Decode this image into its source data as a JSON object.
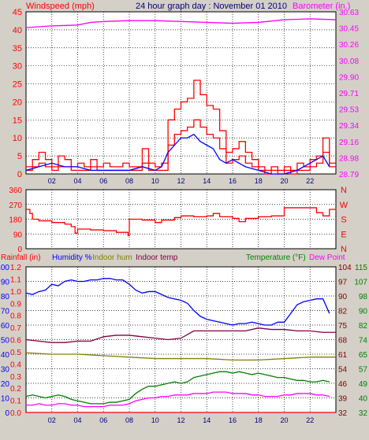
{
  "header": {
    "windspeed_label": "Windspeed (mph)",
    "title": "24 hour graph day : November 01 2010",
    "barometer_label": "Barometer (in.)"
  },
  "colors": {
    "wind": "#ff0000",
    "gust": "#ff0000",
    "avg_wind": "#0000ff",
    "barometer": "#ff00ff",
    "direction": "#ff0000",
    "humidity": "#0000ff",
    "indoor_hum": "#808000",
    "indoor_temp": "#800040",
    "temperature": "#008000",
    "dew_point": "#ff00ff",
    "rainfall": "#ff0000",
    "grid": "#000000",
    "panel_bg": "#ffffff",
    "left_axis": "#ff0000",
    "right_axis": "#ff00ff",
    "text_axis": "#000080"
  },
  "x_ticks": [
    "02",
    "04",
    "06",
    "08",
    "10",
    "12",
    "14",
    "16",
    "18",
    "20",
    "22"
  ],
  "chart_data": [
    {
      "type": "line",
      "name": "wind-barometer",
      "title": "24 hour graph day : November 01 2010",
      "ylabel": "Windspeed (mph)",
      "y2label": "Barometer (in.)",
      "xlim": [
        0,
        24
      ],
      "ylim": [
        0,
        45
      ],
      "y2lim": [
        28.79,
        30.63
      ],
      "y_ticks": [
        "0",
        "5",
        "10",
        "15",
        "20",
        "25",
        "30",
        "35",
        "40",
        "45"
      ],
      "y2_ticks": [
        "28.79",
        "28.98",
        "29.16",
        "29.34",
        "29.53",
        "29.71",
        "29.90",
        "30.08",
        "30.26",
        "30.45",
        "30.63"
      ],
      "grid": true,
      "series": [
        {
          "key": "gust",
          "x": [
            0,
            0.5,
            1,
            1.5,
            2,
            2.5,
            3,
            3.5,
            4,
            4.5,
            5,
            5.5,
            6,
            6.5,
            7,
            7.5,
            8,
            8.5,
            9,
            9.5,
            10,
            10.5,
            11,
            11.5,
            12,
            12.5,
            13,
            13.5,
            14,
            14.5,
            15,
            15.5,
            16,
            16.5,
            17,
            17.5,
            18,
            18.5,
            19,
            19.5,
            20,
            20.5,
            21,
            21.5,
            22,
            22.5,
            23,
            23.5
          ],
          "y": [
            2,
            4,
            6,
            4,
            2,
            5,
            4,
            2,
            3,
            2,
            4,
            2,
            3,
            2,
            2,
            3,
            2,
            2,
            7,
            3,
            2,
            3,
            15,
            18,
            20,
            21,
            26,
            22,
            19,
            18,
            12,
            6,
            7,
            9,
            6,
            4,
            2,
            1,
            2,
            1,
            2,
            1,
            3,
            2,
            4,
            5,
            10,
            3
          ]
        },
        {
          "key": "wind",
          "x": [
            0,
            0.5,
            1,
            1.5,
            2,
            2.5,
            3,
            3.5,
            4,
            4.5,
            5,
            5.5,
            6,
            6.5,
            7,
            7.5,
            8,
            8.5,
            9,
            9.5,
            10,
            10.5,
            11,
            11.5,
            12,
            12.5,
            13,
            13.5,
            14,
            14.5,
            15,
            15.5,
            16,
            16.5,
            17,
            17.5,
            18,
            18.5,
            19,
            19.5,
            20,
            20.5,
            21,
            21.5,
            22,
            22.5,
            23,
            23.5
          ],
          "y": [
            1,
            2,
            3,
            2,
            1,
            2,
            2,
            1,
            1,
            1,
            2,
            1,
            1,
            1,
            1,
            1,
            1,
            1,
            3,
            1,
            1,
            1,
            8,
            11,
            12,
            13,
            15,
            13,
            11,
            10,
            7,
            3,
            4,
            5,
            3,
            2,
            1,
            0,
            1,
            0,
            1,
            0,
            1,
            1,
            2,
            3,
            6,
            2
          ]
        },
        {
          "key": "avg_wind",
          "x": [
            0,
            1,
            2,
            3,
            4,
            5,
            6,
            7,
            8,
            9,
            10,
            10.5,
            11,
            11.5,
            12,
            12.5,
            13,
            13.5,
            14,
            14.5,
            15,
            15.5,
            16,
            17,
            18,
            19,
            20,
            21,
            22,
            22.5,
            23,
            23.5
          ],
          "y": [
            1,
            2,
            3,
            2,
            2,
            1,
            1,
            1,
            1,
            2,
            1,
            2,
            6,
            8,
            10,
            10,
            11,
            9,
            8,
            7,
            4,
            3,
            4,
            2,
            1,
            0,
            0,
            1,
            3,
            4,
            5,
            2
          ]
        }
      ],
      "y2_series": [
        {
          "key": "barometer",
          "x": [
            0,
            2,
            4,
            5,
            6,
            8,
            10,
            12,
            14,
            16,
            18,
            20,
            22,
            24
          ],
          "y": [
            30.45,
            30.47,
            30.48,
            30.51,
            30.52,
            30.53,
            30.53,
            30.52,
            30.51,
            30.5,
            30.51,
            30.54,
            30.55,
            30.54
          ]
        }
      ]
    },
    {
      "type": "line",
      "name": "wind-direction",
      "xlim": [
        0,
        24
      ],
      "ylim": [
        0,
        360
      ],
      "y_ticks": [
        "0",
        "90",
        "180",
        "270",
        "360"
      ],
      "y2_ticks": [
        "N",
        "W",
        "S",
        "E",
        "N"
      ],
      "grid": true,
      "series": [
        {
          "key": "direction",
          "x": [
            0,
            0.3,
            0.5,
            1,
            2,
            3,
            3.5,
            3.8,
            4,
            5,
            6,
            7,
            7.5,
            7.9,
            8,
            9,
            10,
            10.5,
            11,
            11.5,
            12,
            13,
            14,
            14.5,
            15,
            16,
            16.5,
            17,
            18,
            19,
            20,
            21,
            22,
            22.5,
            23,
            23.5,
            24
          ],
          "y": [
            240,
            215,
            180,
            170,
            160,
            150,
            135,
            95,
            120,
            115,
            110,
            100,
            100,
            80,
            180,
            175,
            160,
            175,
            175,
            190,
            200,
            195,
            200,
            215,
            195,
            185,
            165,
            185,
            195,
            200,
            250,
            250,
            250,
            220,
            200,
            240,
            250
          ]
        }
      ]
    },
    {
      "type": "line",
      "name": "humidity-temperature",
      "xlim": [
        0,
        24
      ],
      "left_labels": [
        "Rainfall (in)",
        "Humidity %",
        "Indoor hum",
        "Indoor temp"
      ],
      "right_labels": [
        "Temperature (°F)",
        "Dew Point"
      ],
      "rain_ticks": [
        "0.0",
        "0.1",
        "0.2",
        "0.3",
        "0.4",
        "0.5",
        "0.6",
        "0.7",
        "0.8",
        "0.9",
        "1.0",
        "1.1",
        "1.2"
      ],
      "hum_ticks": [
        "0",
        "10",
        "20",
        "30",
        "40",
        "50",
        "60",
        "70",
        "80",
        "90",
        "100"
      ],
      "temp_ticks_inner": [
        "32",
        "39",
        "46",
        "54",
        "61",
        "68",
        "75",
        "82",
        "90",
        "97",
        "104"
      ],
      "temp_ticks_outer": [
        "32",
        "40",
        "49",
        "57",
        "65",
        "74",
        "82",
        "90",
        "98",
        "107",
        "115"
      ],
      "ylim": [
        0,
        100
      ],
      "grid": true,
      "series": [
        {
          "key": "humidity",
          "x": [
            0,
            0.5,
            1,
            1.5,
            2,
            2.5,
            3,
            3.5,
            4,
            4.5,
            5,
            5.5,
            6,
            6.5,
            7,
            7.5,
            8,
            8.5,
            9,
            9.5,
            10,
            10.5,
            11,
            11.5,
            12,
            12.5,
            13,
            13.5,
            14,
            14.5,
            15,
            15.5,
            16,
            16.5,
            17,
            17.5,
            18,
            18.5,
            19,
            19.5,
            20,
            20.5,
            21,
            21.5,
            22,
            22.5,
            23,
            23.5
          ],
          "y": [
            82,
            81,
            83,
            84,
            88,
            87,
            90,
            91,
            90,
            90,
            91,
            91,
            92,
            92,
            91,
            91,
            88,
            84,
            82,
            83,
            83,
            81,
            79,
            78,
            77,
            75,
            70,
            66,
            64,
            63,
            62,
            61,
            60,
            61,
            61,
            62,
            61,
            60,
            60,
            62,
            62,
            68,
            74,
            76,
            77,
            78,
            78,
            68
          ]
        },
        {
          "key": "indoor_temp",
          "x": [
            0,
            1,
            2,
            3,
            4,
            5,
            6,
            7,
            8,
            9,
            10,
            11,
            12,
            13,
            14,
            15,
            16,
            17,
            18,
            19,
            20,
            21,
            22,
            23,
            24
          ],
          "y": [
            50,
            49,
            48,
            48,
            49,
            49,
            52,
            53,
            53,
            52,
            51,
            50,
            51,
            56,
            56,
            56,
            56,
            56,
            58,
            57,
            57,
            56,
            56,
            55,
            55
          ]
        },
        {
          "key": "indoor_hum",
          "x": [
            0,
            2,
            4,
            6,
            8,
            10,
            12,
            14,
            16,
            18,
            20,
            22,
            24
          ],
          "y": [
            41,
            40,
            40,
            39,
            38,
            37,
            37,
            37,
            36,
            36,
            37,
            38,
            38
          ]
        },
        {
          "key": "temperature",
          "x": [
            0,
            0.5,
            1,
            1.5,
            2,
            2.5,
            3,
            3.5,
            4,
            4.5,
            5,
            5.5,
            6,
            6.5,
            7,
            7.5,
            8,
            8.5,
            9,
            9.5,
            10,
            10.5,
            11,
            11.5,
            12,
            12.5,
            13,
            13.5,
            14,
            14.5,
            15,
            15.5,
            16,
            16.5,
            17,
            17.5,
            18,
            18.5,
            19,
            19.5,
            20,
            20.5,
            21,
            21.5,
            22,
            22.5,
            23,
            23.5
          ],
          "y": [
            11,
            12,
            11,
            10,
            11,
            12,
            11,
            9,
            8,
            7,
            6,
            6,
            6,
            7,
            7,
            8,
            9,
            13,
            16,
            18,
            18,
            19,
            20,
            21,
            20,
            21,
            24,
            25,
            26,
            27,
            28,
            28,
            27,
            28,
            27,
            26,
            27,
            26,
            25,
            24,
            24,
            23,
            22,
            22,
            21,
            21,
            22,
            21
          ]
        },
        {
          "key": "dew_point",
          "x": [
            0,
            0.5,
            1,
            1.5,
            2,
            2.5,
            3,
            3.5,
            4,
            4.5,
            5,
            5.5,
            6,
            6.5,
            7,
            7.5,
            8,
            8.5,
            9,
            9.5,
            10,
            10.5,
            11,
            11.5,
            12,
            12.5,
            13,
            13.5,
            14,
            14.5,
            15,
            15.5,
            16,
            16.5,
            17,
            17.5,
            18,
            18.5,
            19,
            19.5,
            20,
            20.5,
            21,
            21.5,
            22,
            22.5,
            23,
            23.5
          ],
          "y": [
            5,
            5,
            6,
            5,
            5,
            6,
            6,
            5,
            5,
            4,
            4,
            4,
            4,
            5,
            5,
            5,
            6,
            8,
            9,
            10,
            10,
            11,
            11,
            12,
            12,
            12,
            13,
            13,
            13,
            14,
            14,
            14,
            13,
            13,
            13,
            12,
            12,
            11,
            11,
            11,
            12,
            12,
            13,
            13,
            13,
            12,
            12,
            11
          ]
        },
        {
          "key": "rainfall",
          "x": [
            0,
            24
          ],
          "y": [
            0,
            0
          ]
        }
      ]
    }
  ]
}
